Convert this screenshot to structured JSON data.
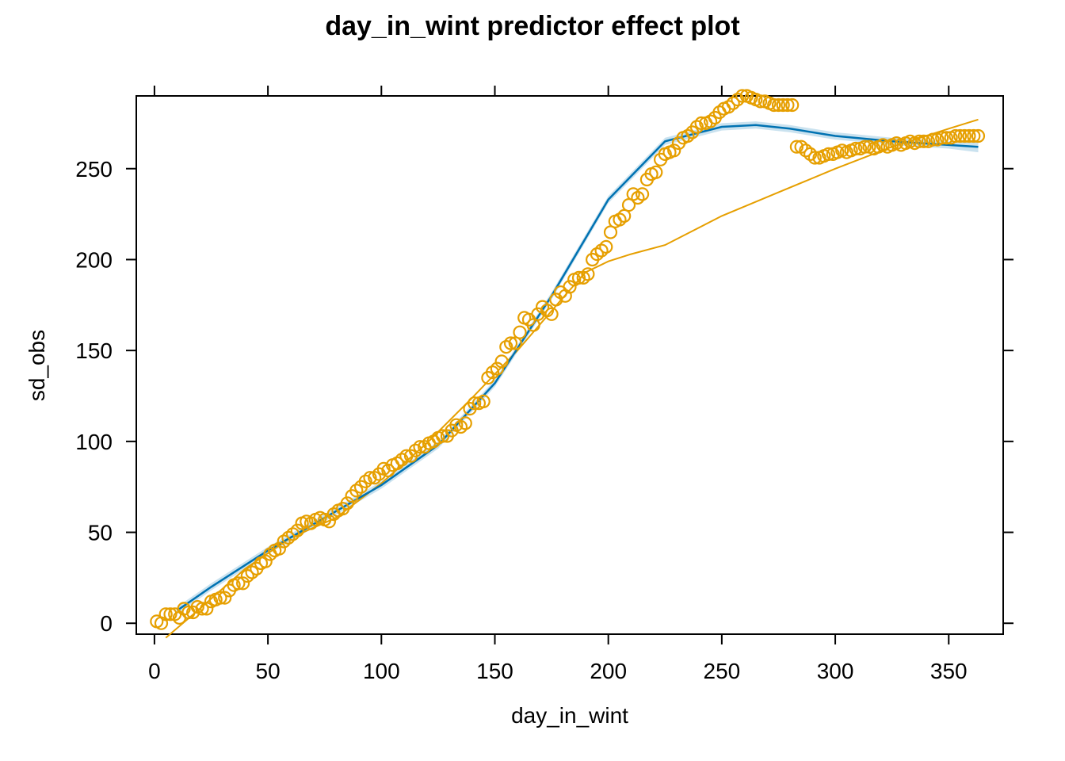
{
  "chart_data": {
    "type": "scatter",
    "title": "day_in_wint predictor effect plot",
    "xlabel": "day_in_wint",
    "ylabel": "sd_obs",
    "xlim": [
      -8,
      374
    ],
    "ylim": [
      -6,
      290
    ],
    "grid": false,
    "legend": "none",
    "x_ticks": [
      0,
      50,
      100,
      150,
      200,
      250,
      300,
      350
    ],
    "y_ticks": [
      0,
      50,
      100,
      150,
      200,
      250
    ],
    "x_tick_labels": [
      "0",
      "50",
      "100",
      "150",
      "200",
      "250",
      "300",
      "350"
    ],
    "y_tick_labels": [
      "0",
      "50",
      "100",
      "150",
      "200",
      "250"
    ],
    "colors": {
      "points": "#E69F00",
      "fit": "#0072B2",
      "band": "#9ECAE1",
      "smooth": "#E69F00"
    },
    "observed_points": {
      "x": [
        1,
        3,
        5,
        7,
        9,
        11,
        13,
        15,
        17,
        19,
        21,
        23,
        25,
        27,
        29,
        31,
        33,
        35,
        37,
        39,
        41,
        43,
        45,
        47,
        49,
        51,
        53,
        55,
        57,
        59,
        61,
        63,
        65,
        67,
        69,
        71,
        73,
        75,
        77,
        79,
        81,
        83,
        85,
        87,
        89,
        91,
        93,
        95,
        97,
        99,
        101,
        103,
        105,
        107,
        109,
        111,
        113,
        115,
        117,
        119,
        121,
        123,
        125,
        127,
        129,
        131,
        133,
        135,
        137,
        139,
        141,
        143,
        145,
        147,
        149,
        151,
        153,
        155,
        157,
        159,
        161,
        163,
        165,
        167,
        169,
        171,
        173,
        175,
        177,
        179,
        181,
        183,
        185,
        187,
        189,
        191,
        193,
        195,
        197,
        199,
        201,
        203,
        205,
        207,
        209,
        211,
        213,
        215,
        217,
        219,
        221,
        223,
        225,
        227,
        229,
        231,
        233,
        235,
        237,
        239,
        241,
        243,
        245,
        247,
        249,
        251,
        253,
        255,
        257,
        259,
        261,
        263,
        265,
        267,
        269,
        271,
        273,
        275,
        277,
        279,
        281,
        283,
        285,
        287,
        289,
        291,
        293,
        295,
        297,
        299,
        301,
        303,
        305,
        307,
        309,
        311,
        313,
        315,
        317,
        319,
        321,
        323,
        325,
        327,
        329,
        331,
        333,
        335,
        337,
        339,
        341,
        343,
        345,
        347,
        349,
        351,
        353,
        355,
        357,
        359,
        361,
        363
      ],
      "y": [
        1,
        0,
        5,
        5,
        5,
        3,
        8,
        6,
        6,
        9,
        8,
        8,
        12,
        13,
        14,
        14,
        18,
        21,
        22,
        22,
        26,
        28,
        30,
        33,
        34,
        38,
        40,
        41,
        45,
        47,
        49,
        51,
        55,
        56,
        55,
        57,
        58,
        57,
        56,
        60,
        62,
        63,
        66,
        70,
        73,
        75,
        78,
        80,
        80,
        82,
        85,
        84,
        87,
        88,
        90,
        92,
        92,
        95,
        97,
        97,
        99,
        100,
        102,
        103,
        103,
        106,
        109,
        108,
        110,
        118,
        121,
        121,
        122,
        135,
        138,
        140,
        144,
        152,
        154,
        154,
        160,
        168,
        167,
        164,
        170,
        174,
        172,
        170,
        178,
        182,
        180,
        185,
        189,
        190,
        190,
        192,
        200,
        203,
        205,
        207,
        215,
        221,
        222,
        224,
        230,
        236,
        234,
        236,
        244,
        247,
        248,
        255,
        258,
        259,
        260,
        264,
        267,
        268,
        270,
        273,
        275,
        275,
        276,
        278,
        281,
        283,
        284,
        286,
        288,
        290,
        290,
        289,
        288,
        287,
        287,
        286,
        285,
        285,
        285,
        285,
        285,
        262,
        262,
        260,
        258,
        256,
        256,
        257,
        258,
        258,
        259,
        260,
        259,
        260,
        261,
        261,
        262,
        262,
        261,
        262,
        263,
        262,
        263,
        264,
        263,
        264,
        265,
        264,
        265,
        265,
        265,
        266,
        266,
        267,
        267,
        267,
        268,
        268,
        268,
        268,
        268,
        268
      ]
    },
    "fitted_line": {
      "x": [
        10,
        25,
        50,
        75,
        100,
        125,
        150,
        175,
        200,
        225,
        250,
        265,
        280,
        300,
        325,
        350,
        363
      ],
      "y": [
        7,
        20,
        40,
        58,
        76,
        98,
        132,
        180,
        233,
        265,
        273,
        274,
        272,
        268,
        265,
        263,
        262
      ]
    },
    "confidence_band": {
      "x": [
        10,
        25,
        50,
        75,
        100,
        125,
        150,
        175,
        200,
        225,
        250,
        265,
        280,
        300,
        325,
        350,
        363
      ],
      "lower": [
        5,
        18,
        38,
        56,
        74,
        96,
        130,
        178,
        231,
        263,
        271,
        272,
        270,
        266,
        263,
        261,
        259
      ],
      "upper": [
        9,
        22,
        42,
        60,
        78,
        100,
        134,
        182,
        235,
        267,
        275,
        276,
        274,
        270,
        267,
        265,
        265
      ]
    },
    "smooth_line": {
      "x": [
        5,
        20,
        40,
        60,
        80,
        100,
        120,
        140,
        160,
        180,
        190,
        200,
        210,
        225,
        250,
        275,
        300,
        325,
        350,
        363
      ],
      "y": [
        -8,
        8,
        30,
        47,
        58,
        77,
        99,
        124,
        150,
        179,
        193,
        199,
        203,
        208,
        224,
        237,
        250,
        262,
        272,
        277
      ]
    }
  }
}
